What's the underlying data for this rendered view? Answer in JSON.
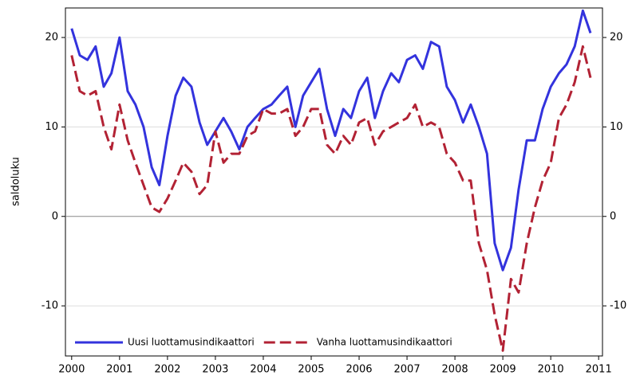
{
  "chart_data": {
    "type": "line",
    "y_label": "saldoluku",
    "x": [
      2000,
      2000.17,
      2000.33,
      2000.5,
      2000.67,
      2000.83,
      2001,
      2001.17,
      2001.33,
      2001.5,
      2001.67,
      2001.83,
      2002,
      2002.17,
      2002.33,
      2002.5,
      2002.67,
      2002.83,
      2003,
      2003.17,
      2003.33,
      2003.5,
      2003.67,
      2003.83,
      2004,
      2004.17,
      2004.33,
      2004.5,
      2004.67,
      2004.83,
      2005,
      2005.17,
      2005.33,
      2005.5,
      2005.67,
      2005.83,
      2006,
      2006.17,
      2006.33,
      2006.5,
      2006.67,
      2006.83,
      2007,
      2007.17,
      2007.33,
      2007.5,
      2007.67,
      2007.83,
      2008,
      2008.17,
      2008.33,
      2008.5,
      2008.67,
      2008.83,
      2009,
      2009.17,
      2009.33,
      2009.5,
      2009.67,
      2009.83,
      2010,
      2010.17,
      2010.33,
      2010.5,
      2010.67,
      2010.83
    ],
    "series": [
      {
        "name": "Uusi luottamusindikaattori",
        "color": "#3333dd",
        "dash": false,
        "values": [
          21,
          18,
          17.5,
          19,
          14.5,
          16,
          20,
          14,
          12.5,
          10,
          5.5,
          3.5,
          9,
          13.5,
          15.5,
          14.5,
          10.5,
          8,
          9.5,
          11,
          9.5,
          7.5,
          10,
          11,
          12,
          12.5,
          13.5,
          14.5,
          10,
          13.5,
          15,
          16.5,
          12,
          9,
          12,
          11,
          14,
          15.5,
          11,
          14,
          16,
          15,
          17.5,
          18,
          16.5,
          19.5,
          19,
          14.5,
          13,
          10.5,
          12.5,
          10,
          7,
          -3,
          -6,
          -3.5,
          3,
          8.5,
          8.5,
          12,
          14.5,
          16,
          17,
          19,
          23,
          20.5
        ]
      },
      {
        "name": "Vanha luottamusindikaattori",
        "color": "#b22234",
        "dash": true,
        "values": [
          18,
          14,
          13.5,
          14,
          10,
          7.5,
          12.5,
          8.5,
          6,
          3.5,
          1,
          0.5,
          2,
          4,
          6,
          5,
          2.5,
          3.5,
          9.5,
          6,
          7,
          7,
          9,
          9.5,
          12,
          11.5,
          11.5,
          12,
          9,
          10,
          12,
          12,
          8,
          7,
          9,
          8,
          10.5,
          11,
          8,
          9.5,
          10,
          10.5,
          11,
          12.5,
          10,
          10.5,
          10,
          7,
          6,
          4,
          4,
          -3,
          -6,
          -11,
          -15,
          -7,
          -8.5,
          -3,
          1,
          4,
          6,
          11,
          12.5,
          15,
          19,
          15.5
        ]
      }
    ],
    "xlim": [
      1999.87,
      2011.08
    ],
    "xticks": [
      2000,
      2001,
      2002,
      2003,
      2004,
      2005,
      2006,
      2007,
      2008,
      2009,
      2010,
      2011
    ],
    "ylim": [
      -15.6,
      23.3
    ],
    "yticks": [
      -10,
      0,
      10,
      20
    ],
    "grid": true,
    "legend": "lower left"
  }
}
